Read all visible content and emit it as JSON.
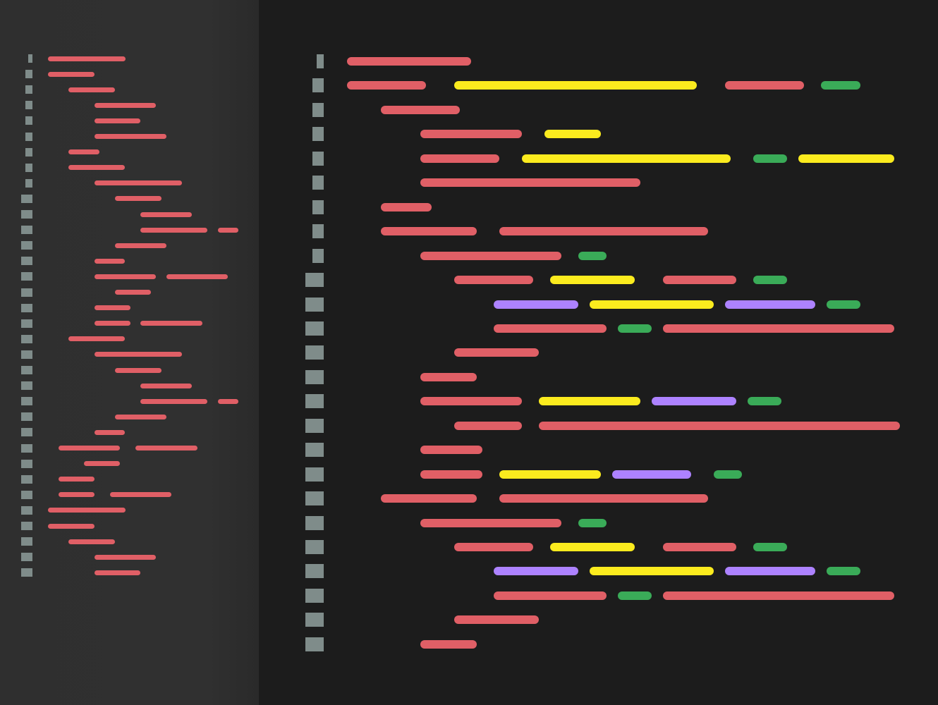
{
  "colors": {
    "keyword": "#e05f66",
    "string": "#fbeb1e",
    "number": "#3aab58",
    "constant": "#ad82ff",
    "gutter": "#7f8c8a",
    "minimap_bg": "#2f2f2f",
    "editor_bg": "#1c1c1c"
  },
  "token_icons": {
    "keyword": "keyword-token",
    "string": "string-token",
    "number": "number-token",
    "constant": "constant-token"
  },
  "editor_lines": [
    [
      {
        "t": "keyword",
        "c": 0,
        "l": 22
      }
    ],
    [
      {
        "t": "keyword",
        "c": 0,
        "l": 14
      },
      {
        "t": "string",
        "c": 19,
        "l": 43
      },
      {
        "t": "keyword",
        "c": 67,
        "l": 14
      },
      {
        "t": "number",
        "c": 84,
        "l": 7
      }
    ],
    [
      {
        "t": "keyword",
        "c": 6,
        "l": 14
      }
    ],
    [
      {
        "t": "keyword",
        "c": 13,
        "l": 18
      },
      {
        "t": "string",
        "c": 35,
        "l": 10
      }
    ],
    [
      {
        "t": "keyword",
        "c": 13,
        "l": 14
      },
      {
        "t": "string",
        "c": 31,
        "l": 37
      },
      {
        "t": "number",
        "c": 72,
        "l": 6
      },
      {
        "t": "string",
        "c": 80,
        "l": 17
      }
    ],
    [
      {
        "t": "keyword",
        "c": 13,
        "l": 39
      }
    ],
    [
      {
        "t": "keyword",
        "c": 6,
        "l": 9
      }
    ],
    [
      {
        "t": "keyword",
        "c": 6,
        "l": 17
      },
      {
        "t": "keyword",
        "c": 27,
        "l": 37
      }
    ],
    [
      {
        "t": "keyword",
        "c": 13,
        "l": 25
      },
      {
        "t": "number",
        "c": 41,
        "l": 5
      }
    ],
    [
      {
        "t": "keyword",
        "c": 19,
        "l": 14
      },
      {
        "t": "string",
        "c": 36,
        "l": 15
      },
      {
        "t": "keyword",
        "c": 56,
        "l": 13
      },
      {
        "t": "number",
        "c": 72,
        "l": 6
      }
    ],
    [
      {
        "t": "constant",
        "c": 26,
        "l": 15
      },
      {
        "t": "string",
        "c": 43,
        "l": 22
      },
      {
        "t": "constant",
        "c": 67,
        "l": 16
      },
      {
        "t": "number",
        "c": 85,
        "l": 6
      }
    ],
    [
      {
        "t": "keyword",
        "c": 26,
        "l": 20
      },
      {
        "t": "number",
        "c": 48,
        "l": 6
      },
      {
        "t": "keyword",
        "c": 56,
        "l": 41
      }
    ],
    [
      {
        "t": "keyword",
        "c": 19,
        "l": 15
      }
    ],
    [
      {
        "t": "keyword",
        "c": 13,
        "l": 10
      }
    ],
    [
      {
        "t": "keyword",
        "c": 13,
        "l": 18
      },
      {
        "t": "string",
        "c": 34,
        "l": 18
      },
      {
        "t": "constant",
        "c": 54,
        "l": 15
      },
      {
        "t": "number",
        "c": 71,
        "l": 6
      }
    ],
    [
      {
        "t": "keyword",
        "c": 19,
        "l": 12
      },
      {
        "t": "keyword",
        "c": 34,
        "l": 64
      }
    ],
    [
      {
        "t": "keyword",
        "c": 13,
        "l": 11
      }
    ],
    [
      {
        "t": "keyword",
        "c": 13,
        "l": 11
      },
      {
        "t": "string",
        "c": 27,
        "l": 18
      },
      {
        "t": "constant",
        "c": 47,
        "l": 14
      },
      {
        "t": "number",
        "c": 65,
        "l": 5
      }
    ],
    [
      {
        "t": "keyword",
        "c": 6,
        "l": 17
      },
      {
        "t": "keyword",
        "c": 27,
        "l": 37
      }
    ],
    [
      {
        "t": "keyword",
        "c": 13,
        "l": 25
      },
      {
        "t": "number",
        "c": 41,
        "l": 5
      }
    ],
    [
      {
        "t": "keyword",
        "c": 19,
        "l": 14
      },
      {
        "t": "string",
        "c": 36,
        "l": 15
      },
      {
        "t": "keyword",
        "c": 56,
        "l": 13
      },
      {
        "t": "number",
        "c": 72,
        "l": 6
      }
    ],
    [
      {
        "t": "constant",
        "c": 26,
        "l": 15
      },
      {
        "t": "string",
        "c": 43,
        "l": 22
      },
      {
        "t": "constant",
        "c": 67,
        "l": 16
      },
      {
        "t": "number",
        "c": 85,
        "l": 6
      }
    ],
    [
      {
        "t": "keyword",
        "c": 26,
        "l": 20
      },
      {
        "t": "number",
        "c": 48,
        "l": 6
      },
      {
        "t": "keyword",
        "c": 56,
        "l": 41
      }
    ],
    [
      {
        "t": "keyword",
        "c": 19,
        "l": 15
      }
    ],
    [
      {
        "t": "keyword",
        "c": 13,
        "l": 10
      }
    ]
  ],
  "minimap_lines": [
    [
      {
        "c": 0,
        "l": 15
      }
    ],
    [
      {
        "c": 0,
        "l": 9
      }
    ],
    [
      {
        "c": 4,
        "l": 9
      }
    ],
    [
      {
        "c": 9,
        "l": 12
      }
    ],
    [
      {
        "c": 9,
        "l": 9
      }
    ],
    [
      {
        "c": 9,
        "l": 14
      }
    ],
    [
      {
        "c": 4,
        "l": 6
      }
    ],
    [
      {
        "c": 4,
        "l": 11
      }
    ],
    [
      {
        "c": 9,
        "l": 17
      }
    ],
    [
      {
        "c": 13,
        "l": 9
      }
    ],
    [
      {
        "c": 18,
        "l": 10
      }
    ],
    [
      {
        "c": 18,
        "l": 13
      },
      {
        "c": 33,
        "l": 4
      }
    ],
    [
      {
        "c": 13,
        "l": 10
      }
    ],
    [
      {
        "c": 9,
        "l": 6
      }
    ],
    [
      {
        "c": 9,
        "l": 12
      },
      {
        "c": 23,
        "l": 12
      }
    ],
    [
      {
        "c": 13,
        "l": 7
      }
    ],
    [
      {
        "c": 9,
        "l": 7
      }
    ],
    [
      {
        "c": 9,
        "l": 7
      },
      {
        "c": 18,
        "l": 12
      }
    ],
    [
      {
        "c": 4,
        "l": 11
      }
    ],
    [
      {
        "c": 9,
        "l": 17
      }
    ],
    [
      {
        "c": 13,
        "l": 9
      }
    ],
    [
      {
        "c": 18,
        "l": 10
      }
    ],
    [
      {
        "c": 18,
        "l": 13
      },
      {
        "c": 33,
        "l": 4
      }
    ],
    [
      {
        "c": 13,
        "l": 10
      }
    ],
    [
      {
        "c": 9,
        "l": 6
      }
    ],
    [
      {
        "c": 2,
        "l": 12
      },
      {
        "c": 17,
        "l": 12
      }
    ],
    [
      {
        "c": 7,
        "l": 7
      }
    ],
    [
      {
        "c": 2,
        "l": 7
      }
    ],
    [
      {
        "c": 2,
        "l": 7
      },
      {
        "c": 12,
        "l": 12
      }
    ],
    [
      {
        "c": 0,
        "l": 15
      }
    ],
    [
      {
        "c": 0,
        "l": 9
      }
    ],
    [
      {
        "c": 4,
        "l": 9
      }
    ],
    [
      {
        "c": 9,
        "l": 12
      }
    ],
    [
      {
        "c": 9,
        "l": 9
      }
    ]
  ]
}
